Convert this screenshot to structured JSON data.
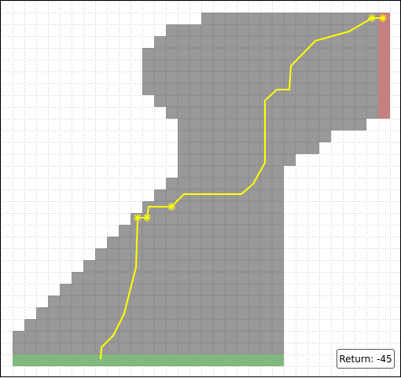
{
  "colors": {
    "grid": "#c8c8c8",
    "track": "#999999",
    "finish": "#c48080",
    "start": "#80b880",
    "path": "#ffff00",
    "marker": "#ffff00"
  },
  "return_label": "Return: -45"
}
